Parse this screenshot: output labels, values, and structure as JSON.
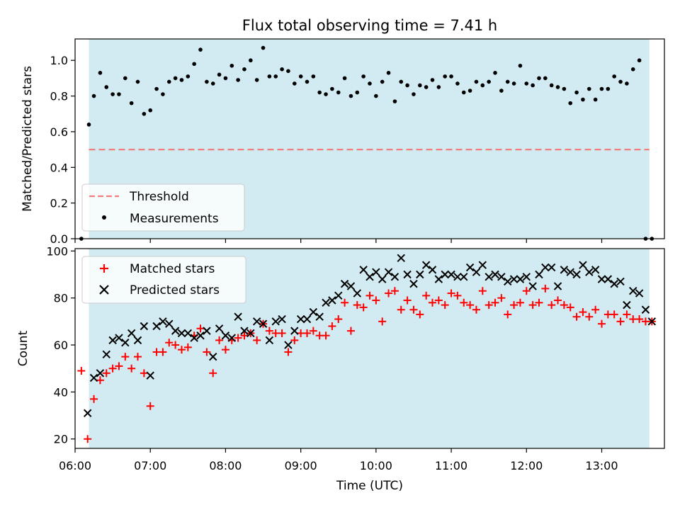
{
  "chart_data": [
    {
      "type": "scatter",
      "title": "Flux total observing time = 7.41 h",
      "xlabel": "",
      "ylabel": "Matched/Predicted stars",
      "xlim": [
        "06:00",
        "13:50"
      ],
      "ylim": [
        0,
        1.12
      ],
      "yticks": [
        0.0,
        0.2,
        0.4,
        0.6,
        0.8,
        1.0
      ],
      "ytick_labels": [
        "0.0",
        "0.2",
        "0.4",
        "0.6",
        "0.8",
        "1.0"
      ],
      "observing_window": [
        "06:11",
        "13:38"
      ],
      "legend_position": "lower-left",
      "series": [
        {
          "name": "Threshold",
          "style": "dashed-line",
          "color": "#f08080",
          "x": [
            "06:11",
            "13:38"
          ],
          "y": [
            0.5,
            0.5
          ]
        },
        {
          "name": "Measurements",
          "style": "dots",
          "color": "#000000",
          "x": [
            "06:05",
            "06:11",
            "06:15",
            "06:20",
            "06:25",
            "06:30",
            "06:35",
            "06:40",
            "06:45",
            "06:50",
            "06:55",
            "07:00",
            "07:05",
            "07:10",
            "07:15",
            "07:20",
            "07:25",
            "07:30",
            "07:35",
            "07:40",
            "07:45",
            "07:50",
            "07:55",
            "08:00",
            "08:05",
            "08:10",
            "08:15",
            "08:20",
            "08:25",
            "08:30",
            "08:35",
            "08:40",
            "08:45",
            "08:50",
            "08:55",
            "09:00",
            "09:05",
            "09:10",
            "09:15",
            "09:20",
            "09:25",
            "09:30",
            "09:35",
            "09:40",
            "09:45",
            "09:50",
            "09:55",
            "10:00",
            "10:05",
            "10:10",
            "10:15",
            "10:20",
            "10:25",
            "10:30",
            "10:35",
            "10:40",
            "10:45",
            "10:50",
            "10:55",
            "11:00",
            "11:05",
            "11:10",
            "11:15",
            "11:20",
            "11:25",
            "11:30",
            "11:35",
            "11:40",
            "11:45",
            "11:50",
            "11:55",
            "12:00",
            "12:05",
            "12:10",
            "12:15",
            "12:20",
            "12:25",
            "12:30",
            "12:35",
            "12:40",
            "12:45",
            "12:50",
            "12:55",
            "13:00",
            "13:05",
            "13:10",
            "13:15",
            "13:20",
            "13:25",
            "13:30",
            "13:35",
            "13:40"
          ],
          "y": [
            0.0,
            0.64,
            0.8,
            0.93,
            0.85,
            0.81,
            0.81,
            0.9,
            0.76,
            0.88,
            0.7,
            0.72,
            0.84,
            0.81,
            0.88,
            0.9,
            0.89,
            0.91,
            0.98,
            1.06,
            0.88,
            0.87,
            0.92,
            0.9,
            0.97,
            0.89,
            0.95,
            1.0,
            0.89,
            1.07,
            0.91,
            0.91,
            0.95,
            0.94,
            0.87,
            0.91,
            0.88,
            0.91,
            0.82,
            0.81,
            0.84,
            0.82,
            0.9,
            0.8,
            0.82,
            0.91,
            0.87,
            0.8,
            0.88,
            0.93,
            0.77,
            0.88,
            0.86,
            0.81,
            0.86,
            0.85,
            0.89,
            0.85,
            0.91,
            0.91,
            0.87,
            0.82,
            0.83,
            0.88,
            0.86,
            0.88,
            0.93,
            0.83,
            0.88,
            0.87,
            0.97,
            0.87,
            0.86,
            0.9,
            0.9,
            0.86,
            0.85,
            0.84,
            0.76,
            0.82,
            0.78,
            0.84,
            0.78,
            0.84,
            0.84,
            0.91,
            0.88,
            0.87,
            0.95,
            1.0,
            0.0,
            0.0
          ]
        }
      ]
    },
    {
      "type": "scatter",
      "title": "",
      "xlabel": "Time (UTC)",
      "ylabel": "Count",
      "xlim": [
        "06:00",
        "13:50"
      ],
      "ylim": [
        16,
        101
      ],
      "yticks": [
        20,
        40,
        60,
        80,
        100
      ],
      "ytick_labels": [
        "20",
        "40",
        "60",
        "80",
        "100"
      ],
      "xticks": [
        "06:00",
        "07:00",
        "08:00",
        "09:00",
        "10:00",
        "11:00",
        "12:00",
        "13:00"
      ],
      "observing_window": [
        "06:11",
        "13:38"
      ],
      "legend_position": "upper-left",
      "series": [
        {
          "name": "Matched stars",
          "marker": "plus",
          "color": "#ff0000",
          "x": [
            "06:05",
            "06:10",
            "06:15",
            "06:20",
            "06:25",
            "06:30",
            "06:35",
            "06:40",
            "06:45",
            "06:50",
            "06:55",
            "07:00",
            "07:05",
            "07:10",
            "07:15",
            "07:20",
            "07:25",
            "07:30",
            "07:35",
            "07:40",
            "07:45",
            "07:50",
            "07:55",
            "08:00",
            "08:05",
            "08:10",
            "08:15",
            "08:20",
            "08:25",
            "08:30",
            "08:35",
            "08:40",
            "08:45",
            "08:50",
            "08:55",
            "09:00",
            "09:05",
            "09:10",
            "09:15",
            "09:20",
            "09:25",
            "09:30",
            "09:35",
            "09:40",
            "09:45",
            "09:50",
            "09:55",
            "10:00",
            "10:05",
            "10:10",
            "10:15",
            "10:20",
            "10:25",
            "10:30",
            "10:35",
            "10:40",
            "10:45",
            "10:50",
            "10:55",
            "11:00",
            "11:05",
            "11:10",
            "11:15",
            "11:20",
            "11:25",
            "11:30",
            "11:35",
            "11:40",
            "11:45",
            "11:50",
            "11:55",
            "12:00",
            "12:05",
            "12:10",
            "12:15",
            "12:20",
            "12:25",
            "12:30",
            "12:35",
            "12:40",
            "12:45",
            "12:50",
            "12:55",
            "13:00",
            "13:05",
            "13:10",
            "13:15",
            "13:20",
            "13:25",
            "13:30",
            "13:35",
            "13:40"
          ],
          "y": [
            49,
            20,
            37,
            45,
            48,
            50,
            51,
            55,
            50,
            55,
            48,
            34,
            57,
            57,
            61,
            60,
            58,
            59,
            64,
            67,
            57,
            48,
            62,
            58,
            62,
            63,
            64,
            65,
            62,
            69,
            66,
            65,
            65,
            57,
            62,
            65,
            65,
            66,
            64,
            64,
            68,
            71,
            78,
            66,
            77,
            76,
            81,
            79,
            70,
            82,
            83,
            75,
            79,
            75,
            73,
            81,
            78,
            79,
            77,
            82,
            81,
            78,
            77,
            75,
            83,
            77,
            78,
            80,
            73,
            77,
            78,
            83,
            77,
            78,
            84,
            77,
            79,
            77,
            76,
            72,
            74,
            72,
            75,
            69,
            73,
            73,
            70,
            73,
            71,
            71,
            70,
            70
          ]
        },
        {
          "name": "Predicted stars",
          "marker": "x",
          "color": "#000000",
          "x": [
            "06:10",
            "06:15",
            "06:20",
            "06:25",
            "06:30",
            "06:35",
            "06:40",
            "06:45",
            "06:50",
            "06:55",
            "07:00",
            "07:05",
            "07:10",
            "07:15",
            "07:20",
            "07:25",
            "07:30",
            "07:35",
            "07:40",
            "07:45",
            "07:50",
            "07:55",
            "08:00",
            "08:05",
            "08:10",
            "08:15",
            "08:20",
            "08:25",
            "08:30",
            "08:35",
            "08:40",
            "08:45",
            "08:50",
            "08:55",
            "09:00",
            "09:05",
            "09:10",
            "09:15",
            "09:20",
            "09:25",
            "09:30",
            "09:35",
            "09:40",
            "09:45",
            "09:50",
            "09:55",
            "10:00",
            "10:05",
            "10:10",
            "10:15",
            "10:20",
            "10:25",
            "10:30",
            "10:35",
            "10:40",
            "10:45",
            "10:50",
            "10:55",
            "11:00",
            "11:05",
            "11:10",
            "11:15",
            "11:20",
            "11:25",
            "11:30",
            "11:35",
            "11:40",
            "11:45",
            "11:50",
            "11:55",
            "12:00",
            "12:05",
            "12:10",
            "12:15",
            "12:20",
            "12:25",
            "12:30",
            "12:35",
            "12:40",
            "12:45",
            "12:50",
            "12:55",
            "13:00",
            "13:05",
            "13:10",
            "13:15",
            "13:20",
            "13:25",
            "13:30",
            "13:35",
            "13:40"
          ],
          "y": [
            31,
            46,
            48,
            56,
            62,
            63,
            61,
            65,
            62,
            68,
            47,
            68,
            70,
            69,
            66,
            65,
            65,
            63,
            64,
            66,
            55,
            67,
            64,
            63,
            72,
            66,
            65,
            70,
            69,
            62,
            70,
            71,
            60,
            66,
            71,
            71,
            74,
            72,
            78,
            79,
            81,
            86,
            85,
            82,
            92,
            89,
            91,
            88,
            91,
            89,
            97,
            90,
            86,
            90,
            94,
            92,
            88,
            90,
            90,
            89,
            89,
            93,
            91,
            94,
            89,
            90,
            89,
            87,
            88,
            88,
            89,
            85,
            90,
            93,
            93,
            85,
            92,
            91,
            90,
            94,
            91,
            92,
            88,
            88,
            86,
            87,
            77,
            83,
            82,
            75,
            70
          ]
        }
      ]
    }
  ],
  "colors": {
    "observing_window": "#add8e6",
    "threshold": "#f08080",
    "measurements": "#000000",
    "matched": "#ff0000",
    "predicted": "#000000"
  }
}
